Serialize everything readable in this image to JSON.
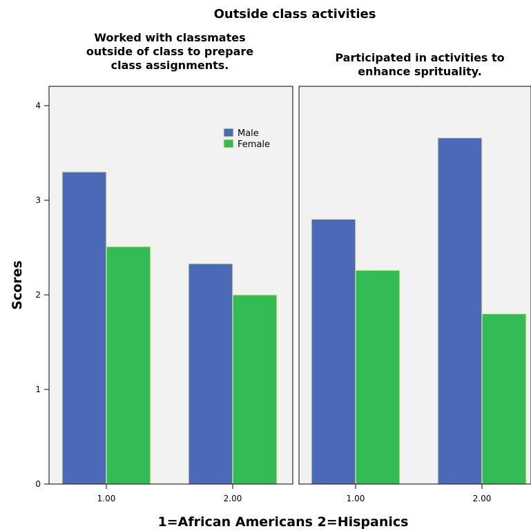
{
  "chart_data": {
    "type": "bar",
    "title": "Outside class activities",
    "xlabel": "1=African Americans  2=Hispanics",
    "ylabel": "Scores",
    "ylim": [
      0,
      4
    ],
    "yticks": [
      "0",
      "1",
      "2",
      "3",
      "4"
    ],
    "categories": [
      "1.00",
      "2.00"
    ],
    "legend": {
      "position": "top-right of first panel",
      "entries": [
        "Male",
        "Female"
      ]
    },
    "colors": {
      "Male": "#4a6ab8",
      "Female": "#33bb55",
      "bar_edge": "#e8e8a0",
      "panel_bg": "#f2f2f2"
    },
    "grid": false,
    "panels": [
      {
        "title": "Worked with classmates outside of class to prepare class assignments.",
        "title_lines": [
          "Worked with classmates",
          "outside of class to prepare",
          "class assignments."
        ],
        "series": [
          {
            "name": "Male",
            "values": [
              3.3,
              2.33
            ]
          },
          {
            "name": "Female",
            "values": [
              2.51,
              2.0
            ]
          }
        ]
      },
      {
        "title": "Participated in activities to enhance sprituality.",
        "title_lines": [
          "Participated in activities to",
          "enhance sprituality."
        ],
        "series": [
          {
            "name": "Male",
            "values": [
              2.8,
              3.66
            ]
          },
          {
            "name": "Female",
            "values": [
              2.26,
              1.8
            ]
          }
        ]
      }
    ]
  }
}
